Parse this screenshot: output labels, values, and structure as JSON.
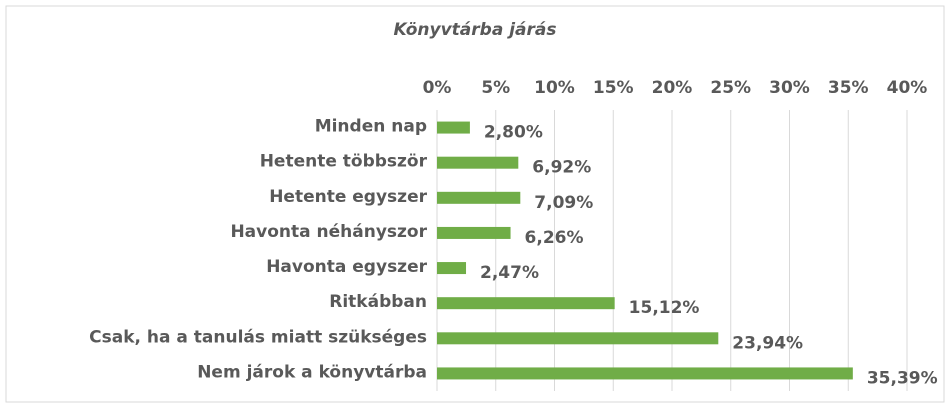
{
  "chart_data": {
    "type": "hbar",
    "title": "Könyvtárba járás",
    "categories": [
      "Minden nap",
      "Hetente többször",
      "Hetente egyszer",
      "Havonta néhányszor",
      "Havonta egyszer",
      "Ritkábban",
      "Csak, ha a tanulás miatt szükséges",
      "Nem járok a könyvtárba"
    ],
    "values": [
      2.8,
      6.92,
      7.09,
      6.26,
      2.47,
      15.12,
      23.94,
      35.39
    ],
    "value_labels": [
      "2,80%",
      "6,92%",
      "7,09%",
      "6,26%",
      "2,47%",
      "15,12%",
      "23,94%",
      "35,39%"
    ],
    "color": "#70ad47",
    "xlim": [
      0,
      40
    ],
    "xticks": [
      {
        "value": 0,
        "label": "0%"
      },
      {
        "value": 5,
        "label": "5%"
      },
      {
        "value": 10,
        "label": "10%"
      },
      {
        "value": 15,
        "label": "15%"
      },
      {
        "value": 20,
        "label": "20%"
      },
      {
        "value": 25,
        "label": "25%"
      },
      {
        "value": 30,
        "label": "30%"
      },
      {
        "value": 35,
        "label": "35%"
      },
      {
        "value": 40,
        "label": "40%"
      }
    ],
    "grid": true
  }
}
